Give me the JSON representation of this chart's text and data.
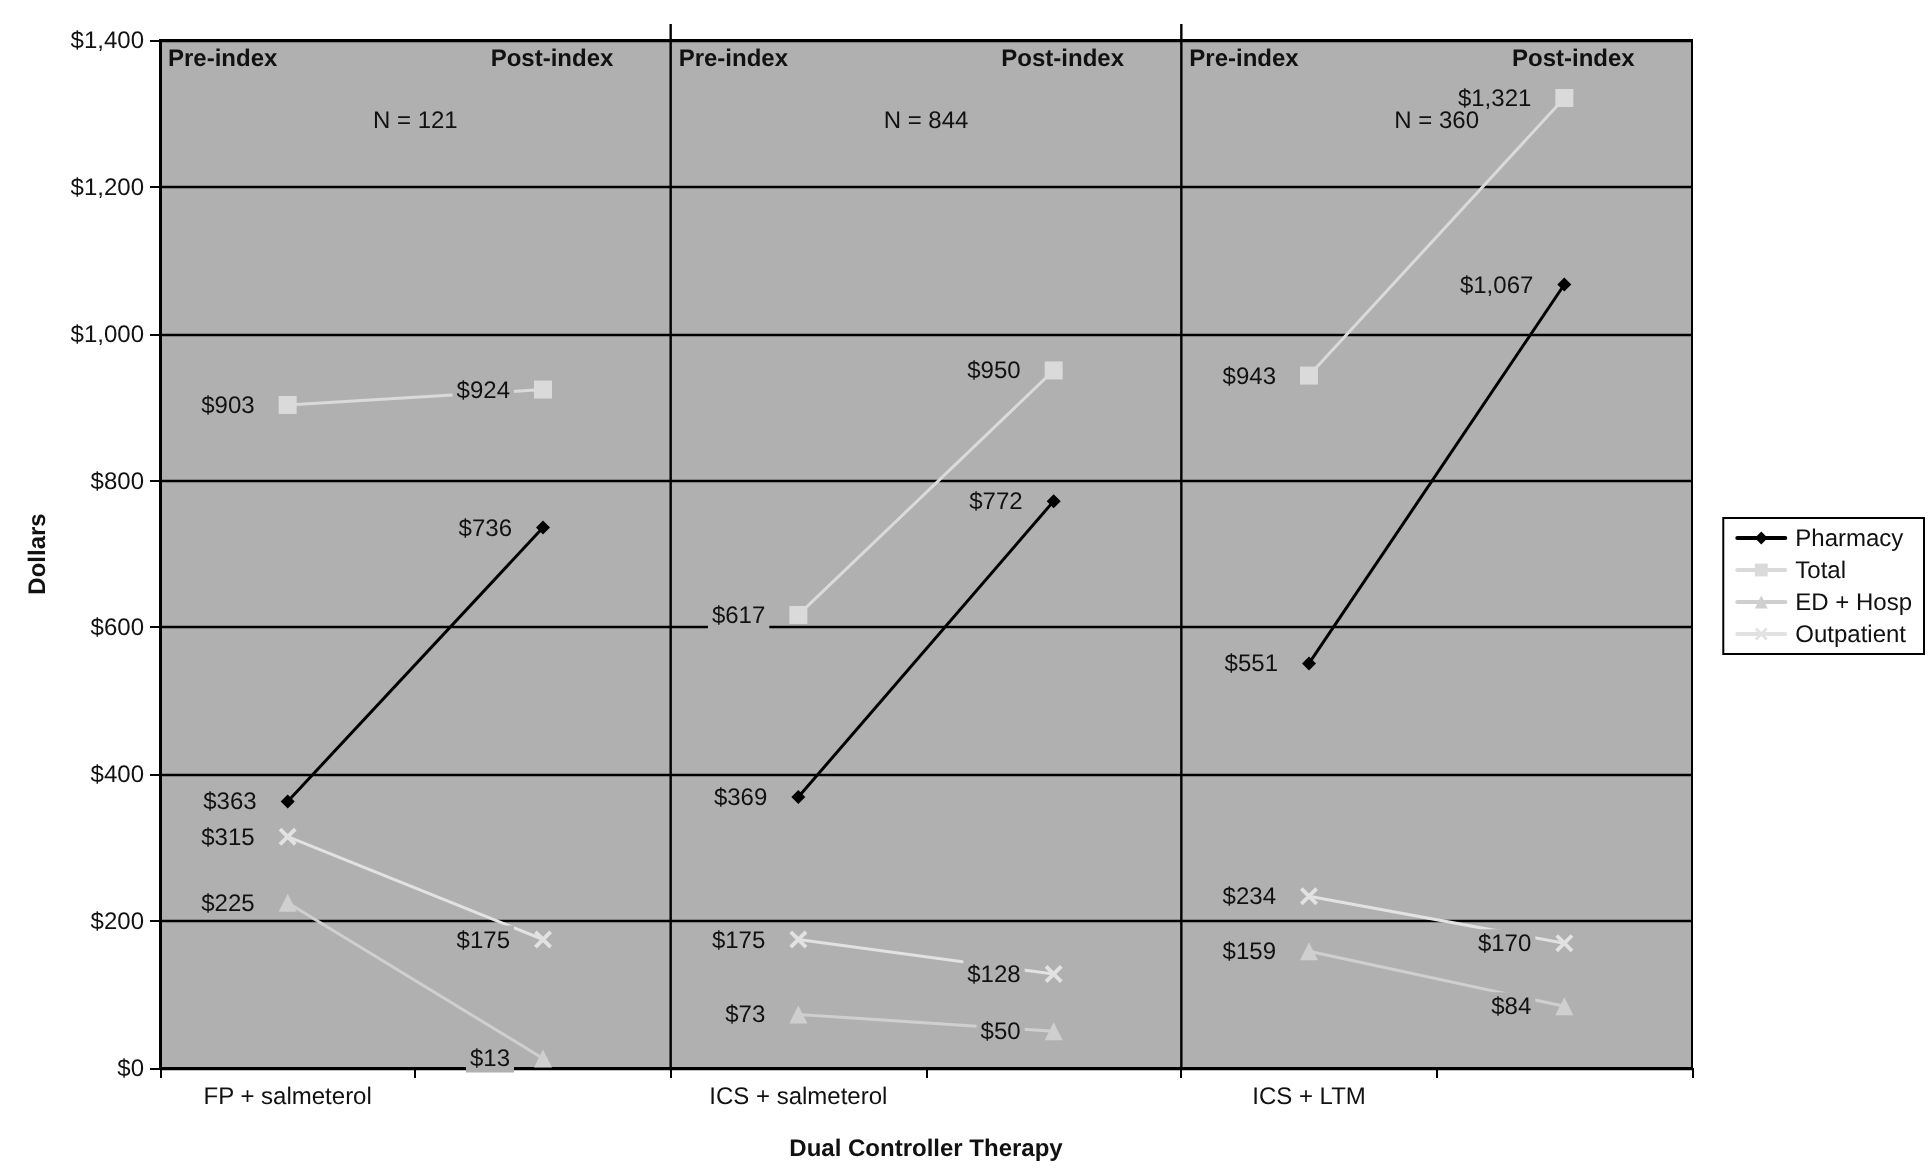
{
  "chart_data": {
    "type": "line",
    "xlabel": "Dual Controller Therapy",
    "ylabel": "Dollars",
    "categories": [
      "FP + salmeterol",
      null,
      "ICS + salmeterol",
      null,
      "ICS + LTM",
      null
    ],
    "series": [
      {
        "name": "Pharmacy",
        "color": "#000000",
        "marker": "diamond",
        "values": [
          363,
          736,
          369,
          772,
          551,
          1067
        ],
        "value_labels": [
          "$363",
          "$736",
          "$369",
          "$772",
          "$551",
          "$1,067"
        ]
      },
      {
        "name": "Total",
        "color": "#dadada",
        "marker": "square",
        "values": [
          903,
          924,
          617,
          950,
          943,
          1321
        ],
        "value_labels": [
          "$903",
          "$924",
          "$617",
          "$950",
          "$943",
          "$1,321"
        ]
      },
      {
        "name": "ED + Hosp",
        "color": "#cfcfcf",
        "marker": "triangle",
        "values": [
          225,
          13,
          73,
          50,
          159,
          84
        ],
        "value_labels": [
          "$225",
          "$13",
          "$73",
          "$50",
          "$159",
          "$84"
        ]
      },
      {
        "name": "Outpatient",
        "color": "#e2e2e2",
        "marker": "cross",
        "values": [
          315,
          175,
          175,
          128,
          234,
          170
        ],
        "value_labels": [
          "$315",
          "$175",
          "$175",
          "$128",
          "$234",
          "$170"
        ]
      }
    ],
    "ylim": [
      0,
      1400
    ],
    "yticks": [
      {
        "value": 0,
        "label": "$0"
      },
      {
        "value": 200,
        "label": "$200"
      },
      {
        "value": 400,
        "label": "$400"
      },
      {
        "value": 600,
        "label": "$600"
      },
      {
        "value": 800,
        "label": "$800"
      },
      {
        "value": 1000,
        "label": "$1,000"
      },
      {
        "value": 1200,
        "label": "$1,200"
      },
      {
        "value": 1400,
        "label": "$1,400"
      }
    ],
    "grid": "y",
    "legend": "right",
    "line_style": "solid",
    "annotations": [
      "Pre-index",
      "Post-index",
      "Pre-index",
      "Post-index",
      "Pre-index",
      "Post-index",
      "N = 121",
      "N = 844",
      "N = 360"
    ]
  }
}
